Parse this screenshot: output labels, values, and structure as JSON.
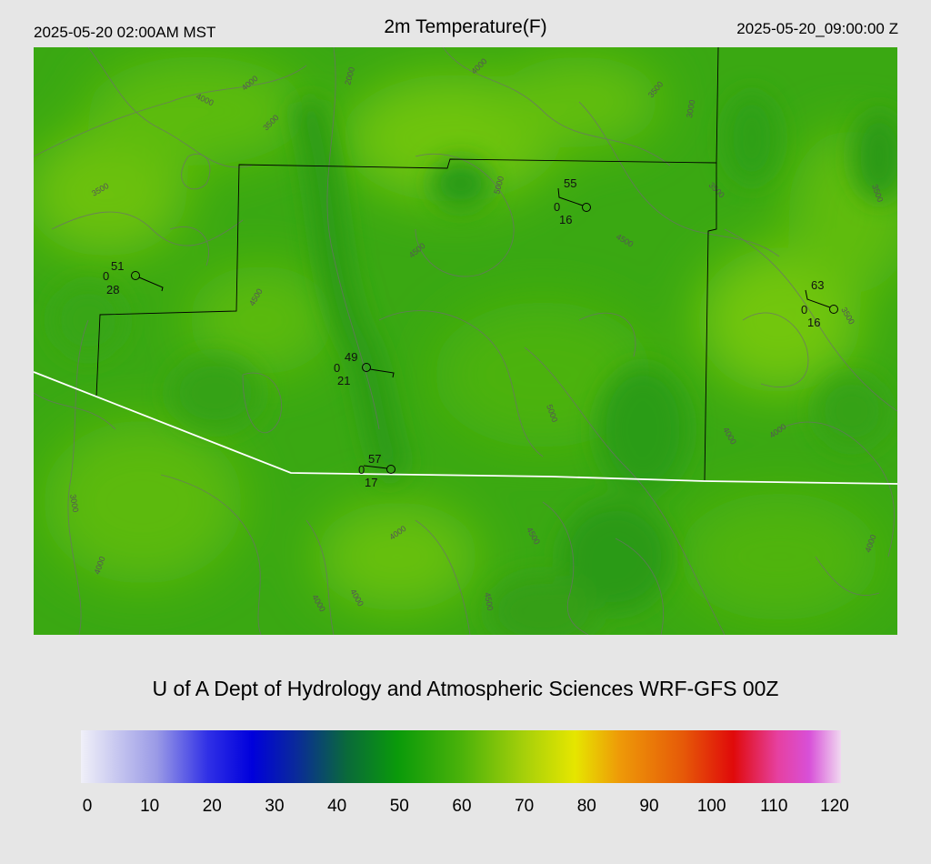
{
  "header": {
    "local_time": "2025-05-20 02:00AM MST",
    "title": "2m Temperature(F)",
    "valid_time": "2025-05-20_09:00:00 Z"
  },
  "credit": "U of A Dept of Hydrology and Atmospheric Sciences WRF-GFS 00Z",
  "colorbar": {
    "min": 0,
    "max": 120,
    "ticks": [
      "0",
      "10",
      "20",
      "30",
      "40",
      "50",
      "60",
      "70",
      "80",
      "90",
      "100",
      "110",
      "120"
    ],
    "color_stops": [
      {
        "v": 0,
        "c": "#f0f0f8"
      },
      {
        "v": 12,
        "c": "#9a9ae6"
      },
      {
        "v": 20,
        "c": "#3030e6"
      },
      {
        "v": 27,
        "c": "#0000dc"
      },
      {
        "v": 34,
        "c": "#0a2a9a"
      },
      {
        "v": 42,
        "c": "#0a6a3a"
      },
      {
        "v": 50,
        "c": "#0a9a0a"
      },
      {
        "v": 60,
        "c": "#4ab20a"
      },
      {
        "v": 70,
        "c": "#a6d00a"
      },
      {
        "v": 78,
        "c": "#e6e600"
      },
      {
        "v": 85,
        "c": "#ee9a08"
      },
      {
        "v": 95,
        "c": "#e65a08"
      },
      {
        "v": 103,
        "c": "#e00a0a"
      },
      {
        "v": 110,
        "c": "#e640a0"
      },
      {
        "v": 115,
        "c": "#d850d8"
      },
      {
        "v": 120,
        "c": "#f0d8f0"
      }
    ]
  },
  "map": {
    "base_color": "#3aa812",
    "border_color": "#ffffff",
    "county_color": "#000000",
    "contour_color": "#6e6e6e"
  },
  "contour_labels": [
    "4000",
    "4000",
    "3500",
    "3500",
    "2000",
    "4000",
    "3500",
    "3000",
    "5000",
    "4500",
    "3500",
    "4500",
    "4500",
    "3500",
    "5000",
    "4000",
    "4000",
    "3500",
    "4000",
    "3000",
    "4000",
    "4000",
    "4000",
    "4500",
    "4500",
    "4000"
  ],
  "stations": [
    {
      "temp": "51",
      "cloud": "0",
      "dew": "28"
    },
    {
      "temp": "55",
      "cloud": "0",
      "dew": "16"
    },
    {
      "temp": "63",
      "cloud": "0",
      "dew": "16"
    },
    {
      "temp": "49",
      "cloud": "0",
      "dew": "21"
    },
    {
      "temp": "57",
      "cloud": "0",
      "dew": "17"
    }
  ]
}
